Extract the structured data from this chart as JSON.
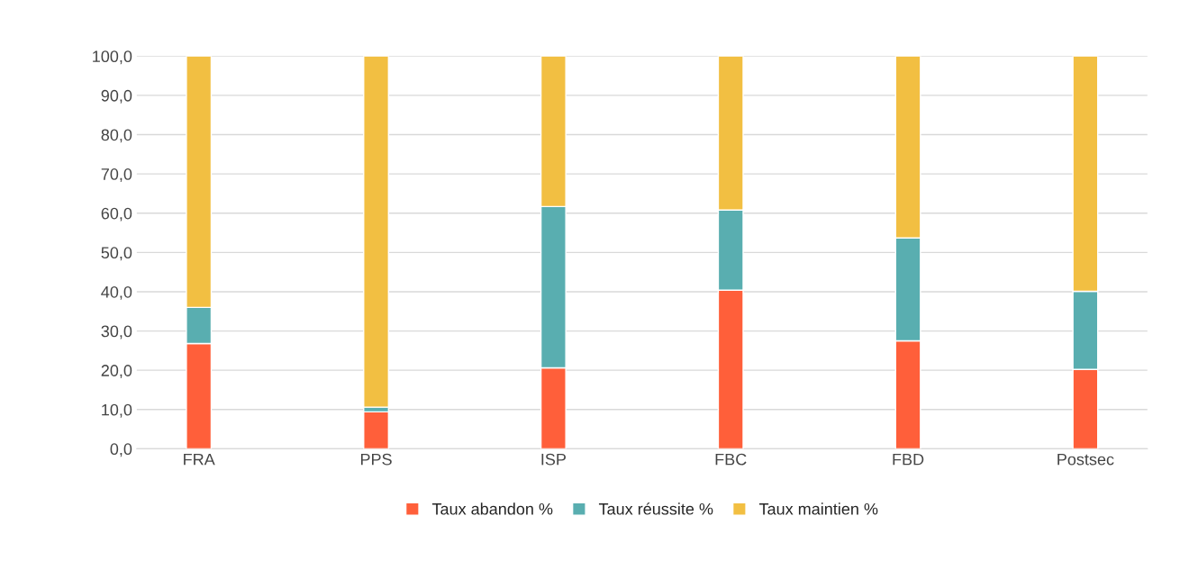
{
  "chart_data": {
    "type": "bar",
    "stacked": true,
    "categories": [
      "FRA",
      "PPS",
      "ISP",
      "FBC",
      "FBD",
      "Postsec"
    ],
    "series": [
      {
        "name": "Taux abandon %",
        "color": "#ff5f3a",
        "values": [
          26.8,
          9.4,
          20.6,
          40.4,
          27.5,
          20.2
        ]
      },
      {
        "name": "Taux réussite %",
        "color": "#59aeb0",
        "values": [
          9.2,
          1.2,
          41.1,
          20.4,
          26.2,
          19.9
        ]
      },
      {
        "name": "Taux maintien %",
        "color": "#f2bf42",
        "values": [
          64.0,
          89.4,
          38.3,
          39.2,
          46.3,
          59.9
        ]
      }
    ],
    "ylim": [
      0,
      100
    ],
    "yticks": [
      {
        "value": 0,
        "label": "0,0"
      },
      {
        "value": 10,
        "label": "10,0"
      },
      {
        "value": 20,
        "label": "20,0"
      },
      {
        "value": 30,
        "label": "30,0"
      },
      {
        "value": 40,
        "label": "40,0"
      },
      {
        "value": 50,
        "label": "50,0"
      },
      {
        "value": 60,
        "label": "60,0"
      },
      {
        "value": 70,
        "label": "70,0"
      },
      {
        "value": 80,
        "label": "80,0"
      },
      {
        "value": 90,
        "label": "90,0"
      },
      {
        "value": 100,
        "label": "100,0"
      }
    ],
    "grid": "y",
    "legend": "bottom"
  }
}
